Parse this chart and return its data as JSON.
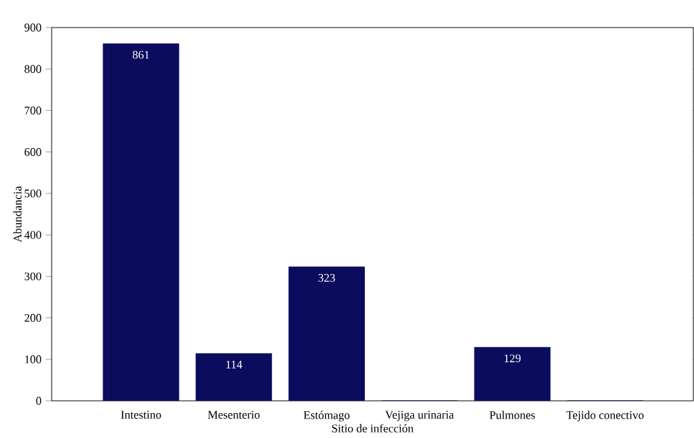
{
  "chart_data": {
    "type": "bar",
    "xlabel": "Sitio de infección",
    "ylabel": "Abundancia",
    "categories": [
      "Intestino",
      "Mesenterio",
      "Estómago",
      "Vejiga urinaria",
      "Pulmones",
      "Tejido conectivo"
    ],
    "values": [
      861,
      114,
      323,
      0,
      129,
      0
    ],
    "value_labels": [
      "861",
      "114",
      "323",
      null,
      "129",
      null
    ],
    "color": "#0c0c5e",
    "ylim": [
      0,
      900
    ],
    "yticks": [
      0,
      100,
      200,
      300,
      400,
      500,
      600,
      700,
      800,
      900
    ],
    "grid": false
  }
}
